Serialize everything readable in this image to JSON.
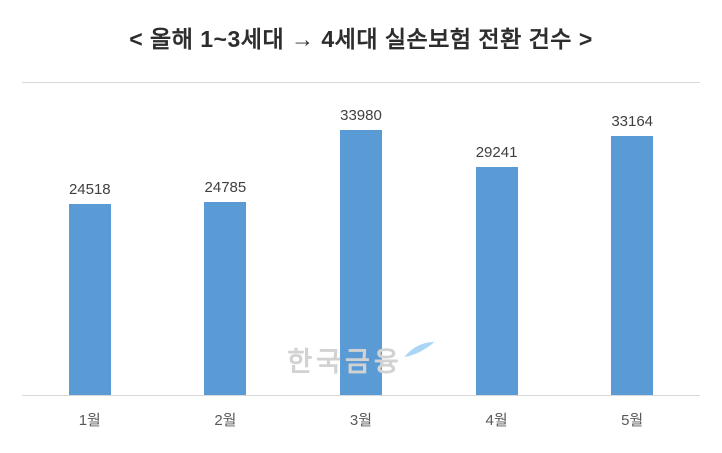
{
  "chart_data": {
    "type": "bar",
    "title": "< 올해 1~3세대 → 4세대 실손보험 전환 건수 >",
    "categories": [
      "1월",
      "2월",
      "3월",
      "4월",
      "5월"
    ],
    "values": [
      24518,
      24785,
      33980,
      29241,
      33164
    ],
    "xlabel": "",
    "ylabel": "",
    "ylim": [
      0,
      40000
    ],
    "bar_color": "#5B9BD5",
    "grid": "top and bottom plot border lines only",
    "legend": "none",
    "value_labels": "above each bar"
  },
  "watermark": {
    "text": "한국금융"
  },
  "colors": {
    "bar": "#5B9BD5",
    "title_text": "#2d2d2d",
    "value_label": "#404040",
    "axis_label": "#595959",
    "axis_line": "#d9d9d9",
    "watermark_text": "#d2d2d2",
    "watermark_swoosh": "#a9d6f5",
    "background": "#ffffff"
  }
}
